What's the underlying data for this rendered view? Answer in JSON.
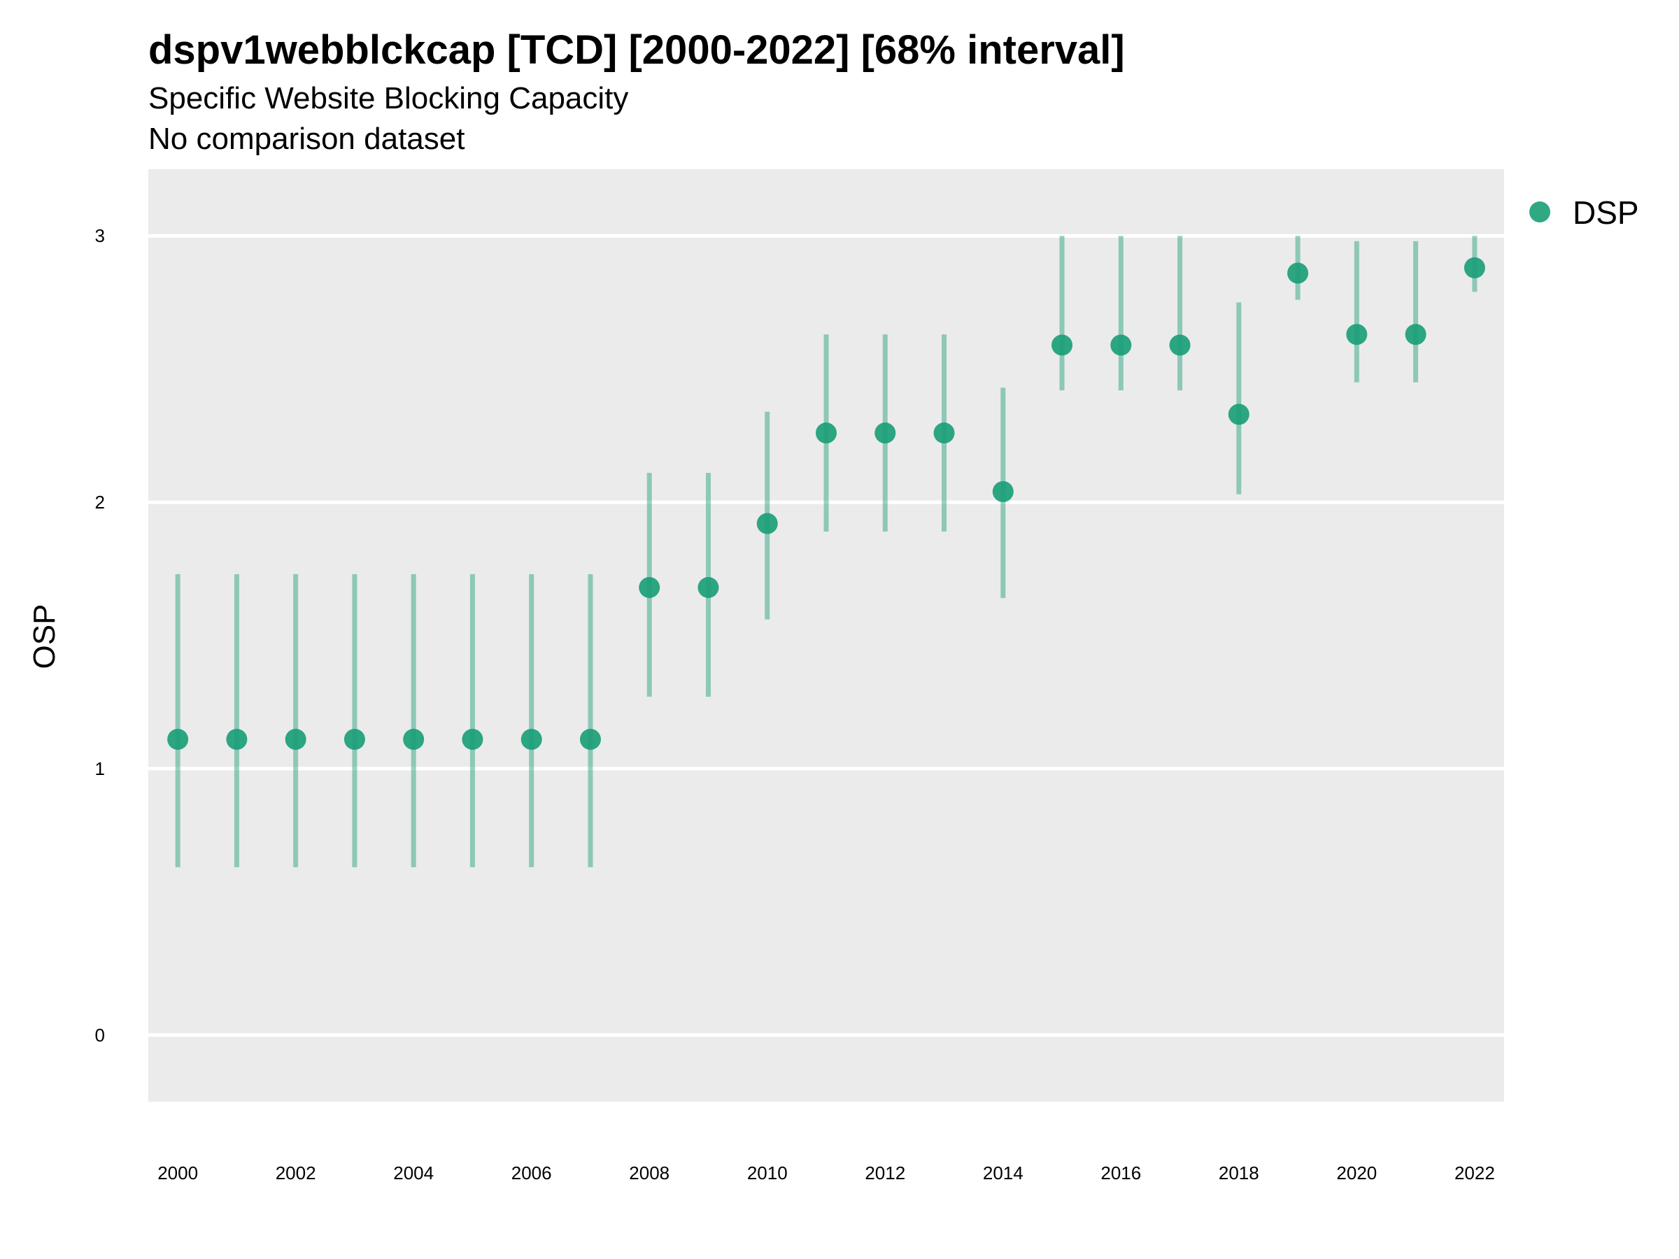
{
  "chart_data": {
    "type": "scatter",
    "title": "dspv1webblckcap [TCD] [2000-2022] [68% interval]",
    "subtitle": "Specific Website Blocking Capacity",
    "subtitle2": "No comparison dataset",
    "xlabel": "",
    "ylabel": "OSP",
    "ylim": [
      -0.25,
      3.25
    ],
    "y_ticks": [
      "0",
      "1",
      "2",
      "3"
    ],
    "x_ticks": [
      "2000",
      "2002",
      "2004",
      "2006",
      "2008",
      "2010",
      "2012",
      "2014",
      "2016",
      "2018",
      "2020",
      "2022"
    ],
    "grid": true,
    "legend_position": "right",
    "series": [
      {
        "name": "DSP",
        "color": "#1b9e77",
        "x": [
          2000,
          2001,
          2002,
          2003,
          2004,
          2005,
          2006,
          2007,
          2008,
          2009,
          2010,
          2011,
          2012,
          2013,
          2014,
          2015,
          2016,
          2017,
          2018,
          2019,
          2020,
          2021,
          2022
        ],
        "y": [
          1.11,
          1.11,
          1.11,
          1.11,
          1.11,
          1.11,
          1.11,
          1.11,
          1.68,
          1.68,
          1.92,
          2.26,
          2.26,
          2.26,
          2.04,
          2.59,
          2.59,
          2.59,
          2.33,
          2.86,
          2.63,
          2.63,
          2.88
        ],
        "lower": [
          0.63,
          0.63,
          0.63,
          0.63,
          0.63,
          0.63,
          0.63,
          0.63,
          1.27,
          1.27,
          1.56,
          1.89,
          1.89,
          1.89,
          1.64,
          2.42,
          2.42,
          2.42,
          2.03,
          2.76,
          2.45,
          2.45,
          2.79
        ],
        "upper": [
          1.73,
          1.73,
          1.73,
          1.73,
          1.73,
          1.73,
          1.73,
          1.73,
          2.11,
          2.11,
          2.34,
          2.63,
          2.63,
          2.63,
          2.43,
          3.0,
          3.0,
          3.0,
          2.75,
          3.0,
          2.98,
          2.98,
          3.0
        ]
      }
    ]
  }
}
